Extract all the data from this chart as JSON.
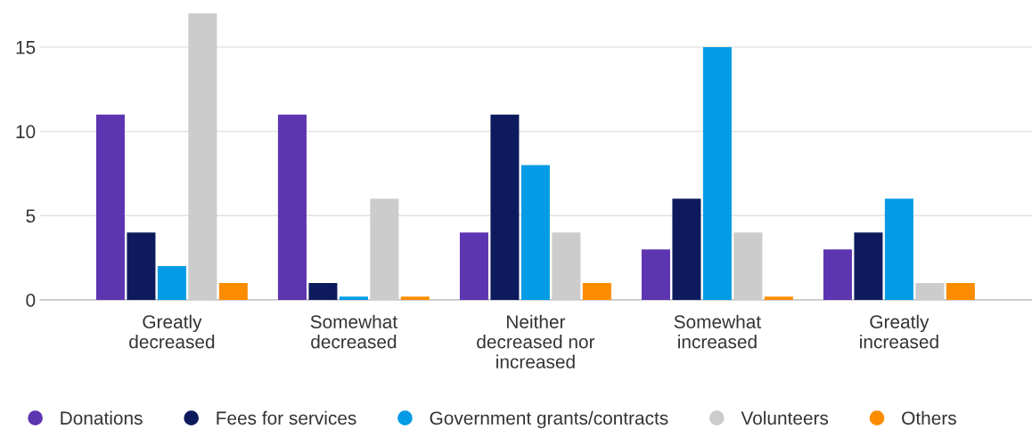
{
  "chart_data": {
    "type": "bar",
    "categories": [
      "Greatly\ndecreased",
      "Somewhat\ndecreased",
      "Neither\ndecreased nor\nincreased",
      "Somewhat\nincreased",
      "Greatly\nincreased"
    ],
    "series": [
      {
        "name": "Donations",
        "color": "#5e35b1",
        "values": [
          11,
          11,
          4,
          3,
          3
        ]
      },
      {
        "name": "Fees for services",
        "color": "#0d1b5e",
        "values": [
          4,
          1,
          11,
          6,
          4
        ]
      },
      {
        "name": "Government grants/contracts",
        "color": "#039be5",
        "values": [
          2,
          0.2,
          8,
          15,
          6
        ]
      },
      {
        "name": "Volunteers",
        "color": "#cccccc",
        "values": [
          17,
          6,
          4,
          4,
          1
        ]
      },
      {
        "name": "Others",
        "color": "#fb8c00",
        "values": [
          1,
          0.2,
          1,
          0.2,
          1
        ]
      }
    ],
    "ylim": [
      0,
      17
    ],
    "yticks": [
      0,
      5,
      10,
      15
    ],
    "grid": "y",
    "legend": "bottom left",
    "marker": "circle"
  }
}
